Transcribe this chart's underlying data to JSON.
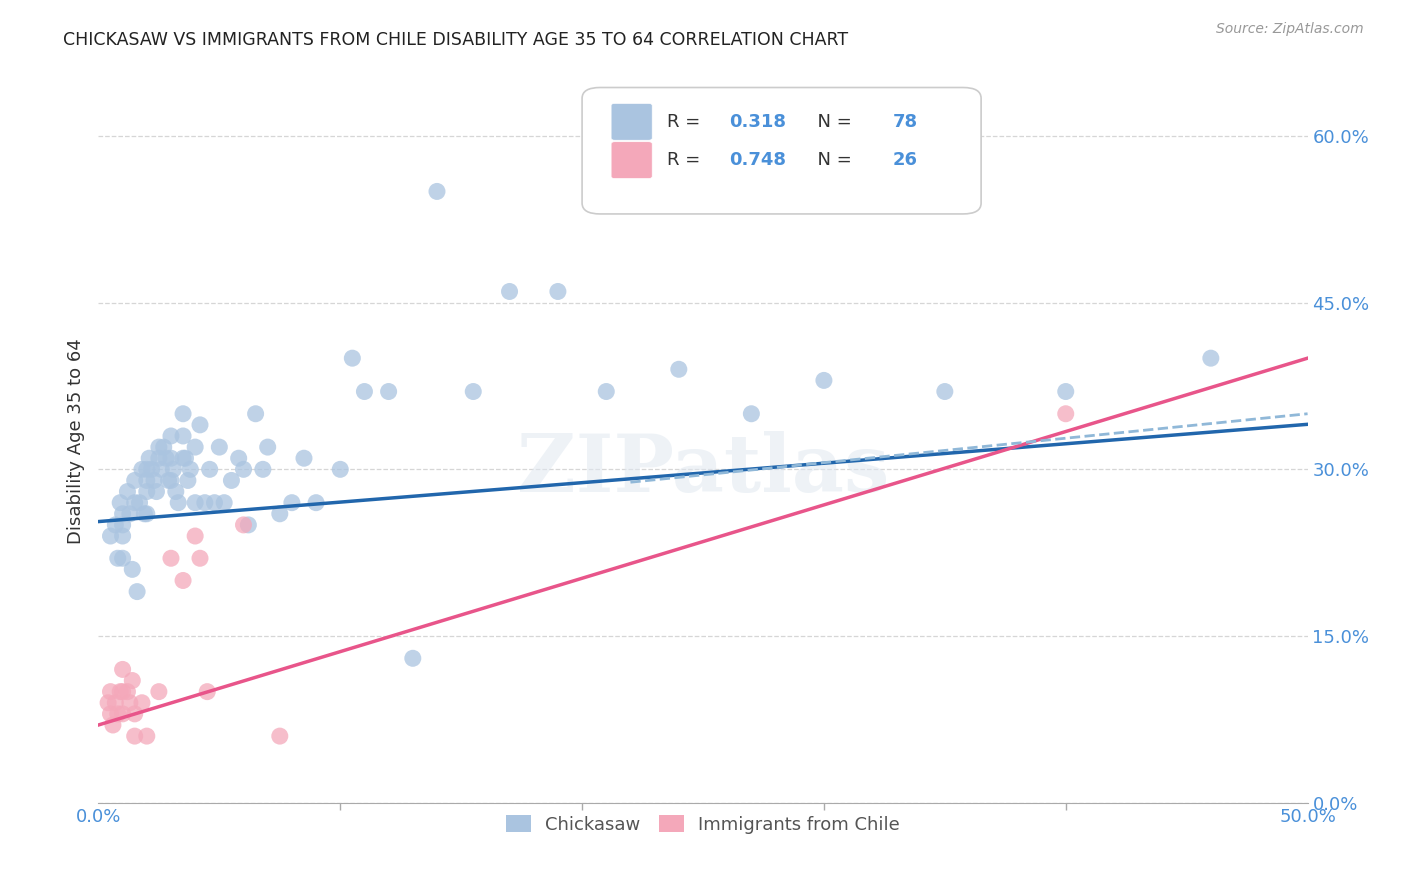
{
  "title": "CHICKASAW VS IMMIGRANTS FROM CHILE DISABILITY AGE 35 TO 64 CORRELATION CHART",
  "source": "Source: ZipAtlas.com",
  "ylabel": "Disability Age 35 to 64",
  "x_min": 0.0,
  "x_max": 0.5,
  "y_min": 0.0,
  "y_max": 0.65,
  "x_tick_positions": [
    0.0,
    0.5
  ],
  "x_tick_labels": [
    "0.0%",
    "50.0%"
  ],
  "y_ticks": [
    0.0,
    0.15,
    0.3,
    0.45,
    0.6
  ],
  "y_tick_labels": [
    "0.0%",
    "15.0%",
    "30.0%",
    "45.0%",
    "60.0%"
  ],
  "legend1_R": "0.318",
  "legend1_N": "78",
  "legend2_R": "0.748",
  "legend2_N": "26",
  "blue_color": "#aac4e0",
  "pink_color": "#f4a8ba",
  "blue_line_color": "#2166ac",
  "pink_line_color": "#e8558a",
  "dashed_line_color": "#90b8d8",
  "watermark": "ZIPatlas",
  "tick_color": "#4a90d9",
  "chickasaw_x": [
    0.005,
    0.007,
    0.008,
    0.009,
    0.01,
    0.01,
    0.01,
    0.01,
    0.012,
    0.013,
    0.014,
    0.015,
    0.015,
    0.016,
    0.017,
    0.018,
    0.019,
    0.02,
    0.02,
    0.02,
    0.02,
    0.021,
    0.022,
    0.023,
    0.024,
    0.025,
    0.025,
    0.026,
    0.027,
    0.028,
    0.029,
    0.03,
    0.03,
    0.03,
    0.031,
    0.032,
    0.033,
    0.035,
    0.035,
    0.035,
    0.036,
    0.037,
    0.038,
    0.04,
    0.04,
    0.042,
    0.044,
    0.046,
    0.048,
    0.05,
    0.052,
    0.055,
    0.058,
    0.06,
    0.062,
    0.065,
    0.068,
    0.07,
    0.075,
    0.08,
    0.085,
    0.09,
    0.1,
    0.105,
    0.11,
    0.12,
    0.13,
    0.14,
    0.155,
    0.17,
    0.19,
    0.21,
    0.24,
    0.27,
    0.3,
    0.35,
    0.4,
    0.46
  ],
  "chickasaw_y": [
    0.24,
    0.25,
    0.22,
    0.27,
    0.26,
    0.25,
    0.24,
    0.22,
    0.28,
    0.26,
    0.21,
    0.29,
    0.27,
    0.19,
    0.27,
    0.3,
    0.26,
    0.3,
    0.29,
    0.28,
    0.26,
    0.31,
    0.3,
    0.29,
    0.28,
    0.32,
    0.31,
    0.3,
    0.32,
    0.31,
    0.29,
    0.33,
    0.31,
    0.29,
    0.3,
    0.28,
    0.27,
    0.35,
    0.33,
    0.31,
    0.31,
    0.29,
    0.3,
    0.32,
    0.27,
    0.34,
    0.27,
    0.3,
    0.27,
    0.32,
    0.27,
    0.29,
    0.31,
    0.3,
    0.25,
    0.35,
    0.3,
    0.32,
    0.26,
    0.27,
    0.31,
    0.27,
    0.3,
    0.4,
    0.37,
    0.37,
    0.13,
    0.55,
    0.37,
    0.46,
    0.46,
    0.37,
    0.39,
    0.35,
    0.38,
    0.37,
    0.37,
    0.4
  ],
  "chile_x": [
    0.004,
    0.005,
    0.005,
    0.006,
    0.007,
    0.008,
    0.009,
    0.01,
    0.01,
    0.01,
    0.012,
    0.013,
    0.014,
    0.015,
    0.015,
    0.018,
    0.02,
    0.025,
    0.03,
    0.035,
    0.04,
    0.042,
    0.045,
    0.06,
    0.075,
    0.4
  ],
  "chile_y": [
    0.09,
    0.08,
    0.1,
    0.07,
    0.09,
    0.08,
    0.1,
    0.12,
    0.1,
    0.08,
    0.1,
    0.09,
    0.11,
    0.08,
    0.06,
    0.09,
    0.06,
    0.1,
    0.22,
    0.2,
    0.24,
    0.22,
    0.1,
    0.25,
    0.06,
    0.35
  ]
}
